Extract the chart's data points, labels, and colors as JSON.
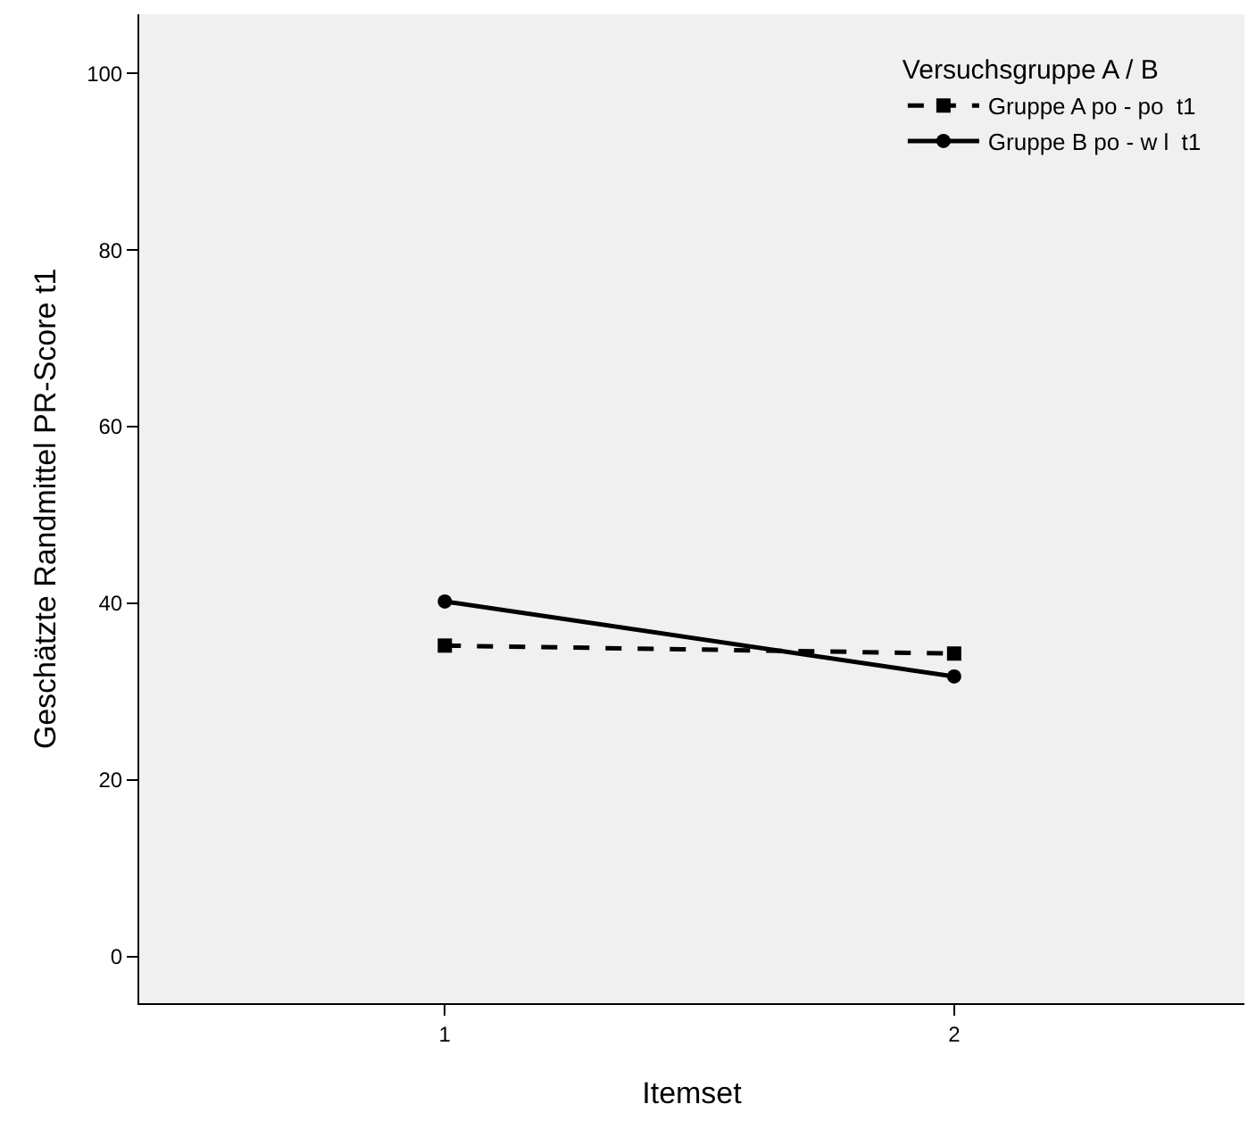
{
  "chart_data": {
    "type": "line",
    "xlabel": "Itemset",
    "ylabel": "Geschätzte Randmittel PR-Score t1",
    "legend_title": "Versuchsgruppe A / B",
    "x": [
      1,
      2
    ],
    "xlim": [
      0.4,
      2.57
    ],
    "xticks": [
      1,
      2
    ],
    "ylim": [
      -5.3,
      106.7
    ],
    "yticks": [
      0,
      20,
      40,
      60,
      80,
      100
    ],
    "series": [
      {
        "name": "Gruppe A po - po  t1",
        "color": "#000000",
        "values": [
          35.2,
          34.3
        ],
        "marker": "square",
        "line_style": "dashed"
      },
      {
        "name": "Gruppe B po - w l  t1",
        "color": "#000000",
        "values": [
          40.2,
          31.7
        ],
        "marker": "circle",
        "line_style": "solid"
      }
    ],
    "grid": false,
    "legend": "top right"
  }
}
